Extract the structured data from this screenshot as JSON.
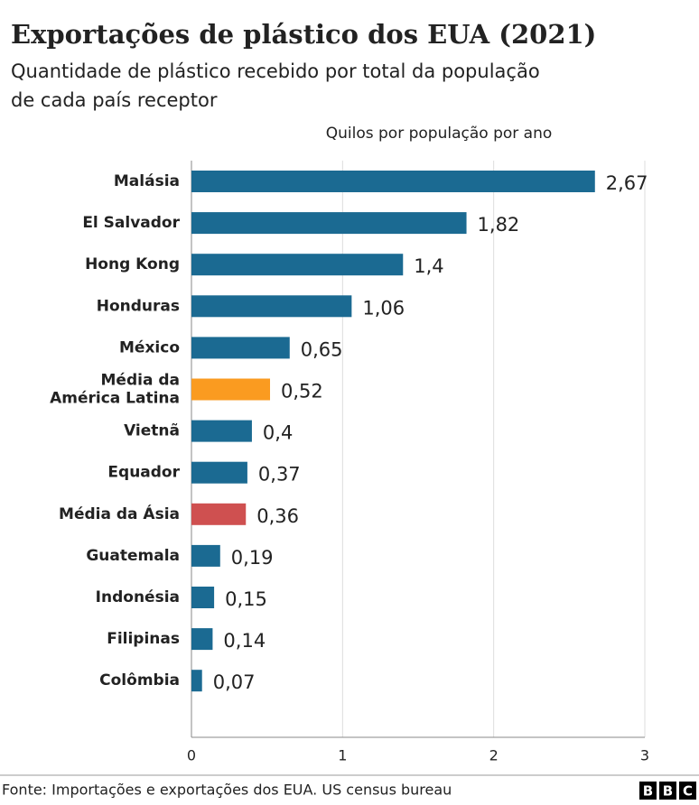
{
  "chart_data": {
    "type": "hbar",
    "title": "Exportações de plástico dos EUA (2021)",
    "subtitle": [
      "Quantidade de plástico recebido por total da população",
      "de cada país receptor"
    ],
    "x_label": "Quilos por população por ano",
    "categories": [
      "Malásia",
      "El Salvador",
      "Hong Kong",
      "Honduras",
      "México",
      "Média da\nAmérica Latina",
      "Vietnã",
      "Equador",
      "Média da Ásia",
      "Guatemala",
      "Indonésia",
      "Filipinas",
      "Colômbia"
    ],
    "values": [
      2.67,
      1.82,
      1.4,
      1.06,
      0.65,
      0.52,
      0.4,
      0.37,
      0.36,
      0.19,
      0.15,
      0.14,
      0.07
    ],
    "value_labels": [
      "2,67",
      "1,82",
      "1,4",
      "1,06",
      "0,65",
      "0,52",
      "0,4",
      "0,37",
      "0,36",
      "0,19",
      "0,15",
      "0,14",
      "0,07"
    ],
    "colors": [
      "#1b6a92",
      "#1b6a92",
      "#1b6a92",
      "#1b6a92",
      "#1b6a92",
      "#fa9b20",
      "#1b6a92",
      "#1b6a92",
      "#cf5050",
      "#1b6a92",
      "#1b6a92",
      "#1b6a92",
      "#1b6a92"
    ],
    "xlim": [
      0,
      3
    ],
    "xticks": [
      0,
      1,
      2,
      3
    ],
    "grid": true,
    "source": "Fonte: Importações e exportações dos EUA. US census bureau",
    "logo": [
      "B",
      "B",
      "C"
    ]
  }
}
